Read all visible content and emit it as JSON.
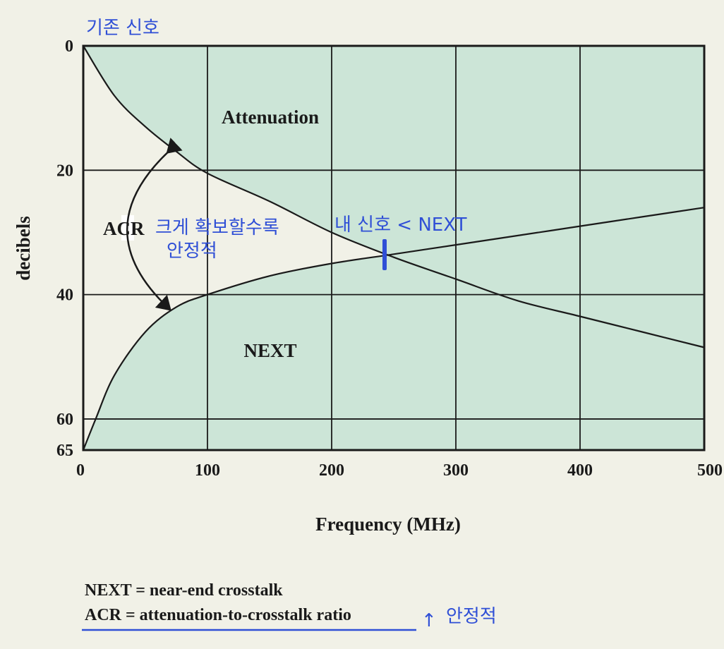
{
  "chart_data": {
    "type": "line",
    "title": "",
    "xlabel": "Frequency (MHz)",
    "ylabel": "decibels",
    "xlim": [
      0,
      500
    ],
    "ylim": [
      65,
      0
    ],
    "y_inverted": true,
    "grid": true,
    "x_ticks": [
      "0",
      "100",
      "200",
      "300",
      "400",
      "500"
    ],
    "y_ticks": [
      "0",
      "20",
      "40",
      "60",
      "65"
    ],
    "series": [
      {
        "name": "Attenuation",
        "x": [
          0,
          25,
          50,
          75,
          100,
          150,
          200,
          250,
          300,
          350,
          400,
          450,
          500
        ],
        "y": [
          0,
          8,
          13,
          17,
          20.5,
          25,
          30,
          34,
          37.5,
          41,
          43.5,
          46,
          48.5
        ]
      },
      {
        "name": "NEXT",
        "x": [
          0,
          10,
          25,
          50,
          75,
          100,
          150,
          200,
          250,
          300,
          350,
          400,
          450,
          500
        ],
        "y": [
          65,
          60,
          53,
          46,
          42,
          40,
          37,
          35,
          33.5,
          32,
          30.5,
          29,
          27.5,
          26
        ]
      }
    ],
    "region_labels": {
      "attenuation": "Attenuation",
      "acr": "ACR",
      "next": "NEXT"
    },
    "acr_arrow": {
      "x": 70,
      "from_y": 16.5,
      "to_y": 42
    }
  },
  "annotations": {
    "baseline_note": "기존 신호",
    "acr_note_line1": "크게 확보할수록",
    "acr_note_line2": "안정적",
    "crossover_note": "내 신호 < NEXT",
    "arrow_glyph": "↑",
    "legend_note": "안정적"
  },
  "legend": {
    "next_def": "NEXT = near-end crosstalk",
    "acr_def": "ACR = attenuation-to-crosstalk ratio"
  },
  "colors": {
    "region_fill": "#cce5d7",
    "acr_fill": "#f1f1e7",
    "line": "#1a1a1a",
    "annotation_blue": "#2f4fd6"
  }
}
